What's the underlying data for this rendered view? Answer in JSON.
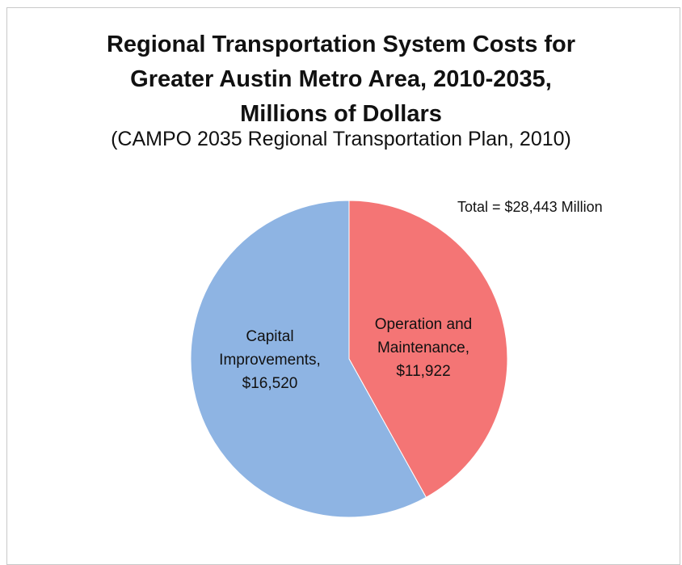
{
  "chart_data": {
    "type": "pie",
    "title_lines": [
      "Regional Transportation System Costs for",
      "Greater Austin Metro Area, 2010-2035,",
      "Millions of Dollars"
    ],
    "subtitle": "(CAMPO 2035 Regional Transportation Plan, 2010)",
    "annotation": "Total = $28,443 Million",
    "legend": "none",
    "slices": [
      {
        "name": "Operation and Maintenance",
        "value": 11922,
        "label_lines": [
          "Operation and",
          "Maintenance,",
          "$11,922"
        ],
        "color": "#f47575"
      },
      {
        "name": "Capital Improvements",
        "value": 16520,
        "label_lines": [
          "Capital",
          "Improvements,",
          "$16,520"
        ],
        "color": "#8eb4e3"
      }
    ]
  }
}
